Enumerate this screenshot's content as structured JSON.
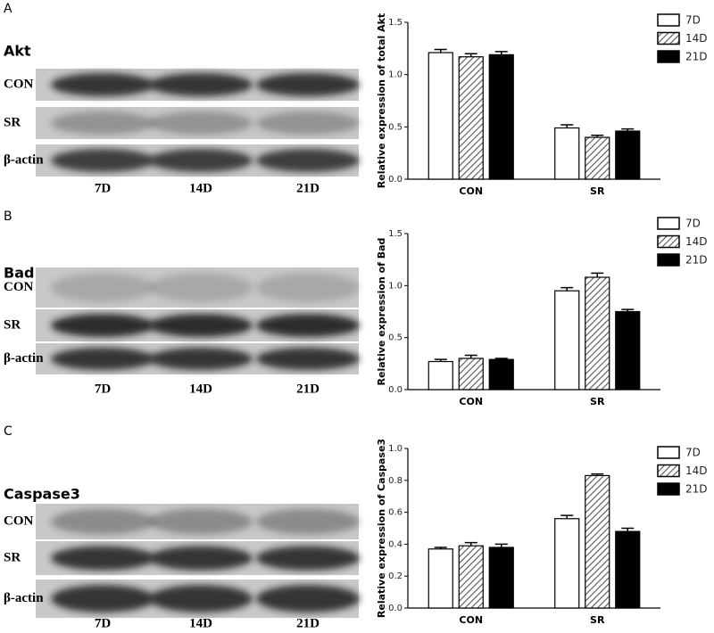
{
  "chart_data": [
    {
      "type": "bar",
      "ylabel": "Relative expression of total Akt",
      "categories": [
        "CON",
        "SR"
      ],
      "series": [
        {
          "name": "7D",
          "color": "#ffffff",
          "values": [
            1.21,
            0.49
          ],
          "errors": [
            0.03,
            0.03
          ]
        },
        {
          "name": "14D",
          "color": "#888888",
          "hatch": true,
          "values": [
            1.17,
            0.4
          ],
          "errors": [
            0.03,
            0.02
          ]
        },
        {
          "name": "21D",
          "color": "#000000",
          "values": [
            1.19,
            0.46
          ],
          "errors": [
            0.03,
            0.02
          ]
        }
      ],
      "ylim": [
        0,
        1.5
      ],
      "yticks": [
        {
          "value": 0,
          "label": "0.0"
        },
        {
          "value": 0.5,
          "label": "0.5"
        },
        {
          "value": 1,
          "label": "1.0"
        },
        {
          "value": 1.5,
          "label": "1.5"
        }
      ]
    },
    {
      "type": "bar",
      "ylabel": "Relative expression of Bad",
      "categories": [
        "CON",
        "SR"
      ],
      "series": [
        {
          "name": "7D",
          "color": "#ffffff",
          "values": [
            0.27,
            0.95
          ],
          "errors": [
            0.02,
            0.03
          ]
        },
        {
          "name": "14D",
          "color": "#888888",
          "hatch": true,
          "values": [
            0.3,
            1.08
          ],
          "errors": [
            0.03,
            0.04
          ]
        },
        {
          "name": "21D",
          "color": "#000000",
          "values": [
            0.29,
            0.75
          ],
          "errors": [
            0.01,
            0.02
          ]
        }
      ],
      "ylim": [
        0,
        1.5
      ],
      "yticks": [
        {
          "value": 0,
          "label": "0.0"
        },
        {
          "value": 0.5,
          "label": "0.5"
        },
        {
          "value": 1,
          "label": "1.0"
        },
        {
          "value": 1.5,
          "label": "1.5"
        }
      ]
    },
    {
      "type": "bar",
      "ylabel": "Relative expression of Caspase3",
      "categories": [
        "CON",
        "SR"
      ],
      "series": [
        {
          "name": "7D",
          "color": "#ffffff",
          "values": [
            0.37,
            0.56
          ],
          "errors": [
            0.01,
            0.02
          ]
        },
        {
          "name": "14D",
          "color": "#888888",
          "hatch": true,
          "values": [
            0.39,
            0.83
          ],
          "errors": [
            0.02,
            0.01
          ]
        },
        {
          "name": "21D",
          "color": "#000000",
          "values": [
            0.38,
            0.48
          ],
          "errors": [
            0.02,
            0.02
          ]
        }
      ],
      "ylim": [
        0,
        1
      ],
      "yticks": [
        {
          "value": 0,
          "label": "0.0"
        },
        {
          "value": 0.2,
          "label": "0.2"
        },
        {
          "value": 0.4,
          "label": "0.4"
        },
        {
          "value": 0.6,
          "label": "0.6"
        },
        {
          "value": 0.8,
          "label": "0.8"
        },
        {
          "value": 1,
          "label": "1.0"
        }
      ]
    }
  ],
  "blots": [
    {
      "panel": "A",
      "protein": "Akt",
      "rows": [
        "CON",
        "SR",
        "β-actin"
      ],
      "lanes": [
        "7D",
        "14D",
        "21D"
      ]
    },
    {
      "panel": "B",
      "protein": "Bad",
      "rows": [
        "CON",
        "SR",
        "β-actin"
      ],
      "lanes": [
        "7D",
        "14D",
        "21D"
      ]
    },
    {
      "panel": "C",
      "protein": "Caspase3",
      "rows": [
        "CON",
        "SR",
        "β-actin"
      ],
      "lanes": [
        "7D",
        "14D",
        "21D"
      ]
    }
  ]
}
